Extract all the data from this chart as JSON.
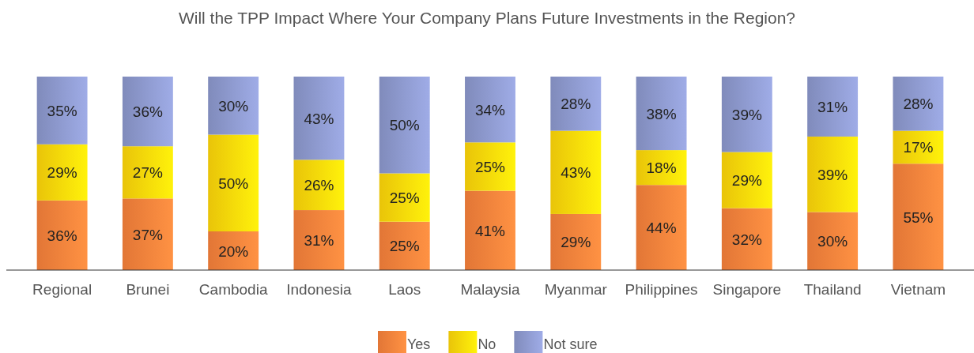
{
  "chart_data": {
    "type": "bar",
    "stacked": true,
    "legend": "bottom",
    "title": "Will the TPP Impact Where Your Company Plans Future Investments in the Region?",
    "categories": [
      "Regional",
      "Brunei",
      "Cambodia",
      "Indonesia",
      "Laos",
      "Malaysia",
      "Myanmar",
      "Philippines",
      "Singapore",
      "Thailand",
      "Vietnam"
    ],
    "series": [
      {
        "name": "Yes",
        "color": "#f7813b",
        "values": [
          36,
          37,
          20,
          31,
          25,
          41,
          29,
          44,
          32,
          30,
          55
        ],
        "value_labels": [
          "36%",
          "37%",
          "20%",
          "31%",
          "25%",
          "41%",
          "29%",
          "44%",
          "32%",
          "30%",
          "55%"
        ]
      },
      {
        "name": "No",
        "color": "#ffd60a",
        "values": [
          29,
          27,
          50,
          26,
          25,
          25,
          43,
          18,
          29,
          39,
          17
        ],
        "value_labels": [
          "29%",
          "27%",
          "50%",
          "26%",
          "25%",
          "25%",
          "43%",
          "18%",
          "29%",
          "39%",
          "17%"
        ]
      },
      {
        "name": "Not sure",
        "color": "#8c98cc",
        "values": [
          35,
          36,
          30,
          43,
          50,
          34,
          28,
          38,
          39,
          31,
          28
        ],
        "value_labels": [
          "35%",
          "36%",
          "30%",
          "43%",
          "50%",
          "34%",
          "28%",
          "38%",
          "39%",
          "31%",
          "28%"
        ]
      }
    ]
  }
}
